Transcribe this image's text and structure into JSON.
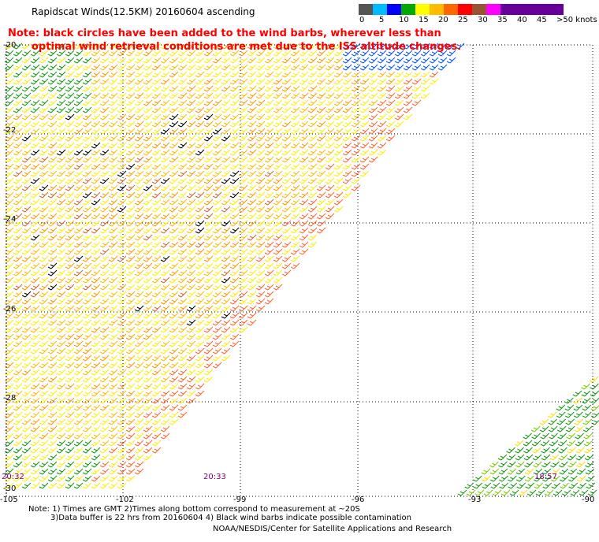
{
  "header": {
    "title": "Rapidscat Winds(12.5KM) 20160604 ascending",
    "note_line1": "Note: black circles have been added to the wind barbs, wherever less than",
    "note_line2": "optimal wind retrieval conditions are met due to the ISS altitude changes."
  },
  "legend": {
    "ticks": [
      "0",
      "5",
      "10",
      "15",
      "20",
      "25",
      "30",
      "35",
      "40",
      "45",
      ">50 knots"
    ],
    "colors": [
      "#555555",
      "#00bbff",
      "#0000ff",
      "#00aa00",
      "#ffff00",
      "#ffbb00",
      "#ff6600",
      "#ff0000",
      "#995533",
      "#ff00ff",
      "#660099"
    ]
  },
  "axes": {
    "lat_labels": [
      "-20",
      "-22",
      "-24",
      "-26",
      "-28",
      "-30"
    ],
    "lon_labels": [
      "-105",
      "-102",
      "-99",
      "-96",
      "-93",
      "-90"
    ]
  },
  "time_labels": [
    "20:32",
    "20:33",
    "18:57"
  ],
  "footer": {
    "line1": "Note: 1) Times are GMT 2)Times along bottom correspond to measurement at ~20S",
    "line2": "3)Data buffer is 22 hrs from 20160604 4) Black wind barbs indicate possible contamination",
    "credit": "NOAA/NESDIS/Center for Satellite Applications and Research"
  },
  "map_data": {
    "lat_range": [
      -30,
      -20
    ],
    "lon_range": [
      -105,
      -90
    ],
    "swaths": [
      {
        "name": "main",
        "color_scheme": "yellow-orange",
        "contamination_marks": true
      },
      {
        "name": "southeast",
        "color_scheme": "green"
      }
    ]
  }
}
